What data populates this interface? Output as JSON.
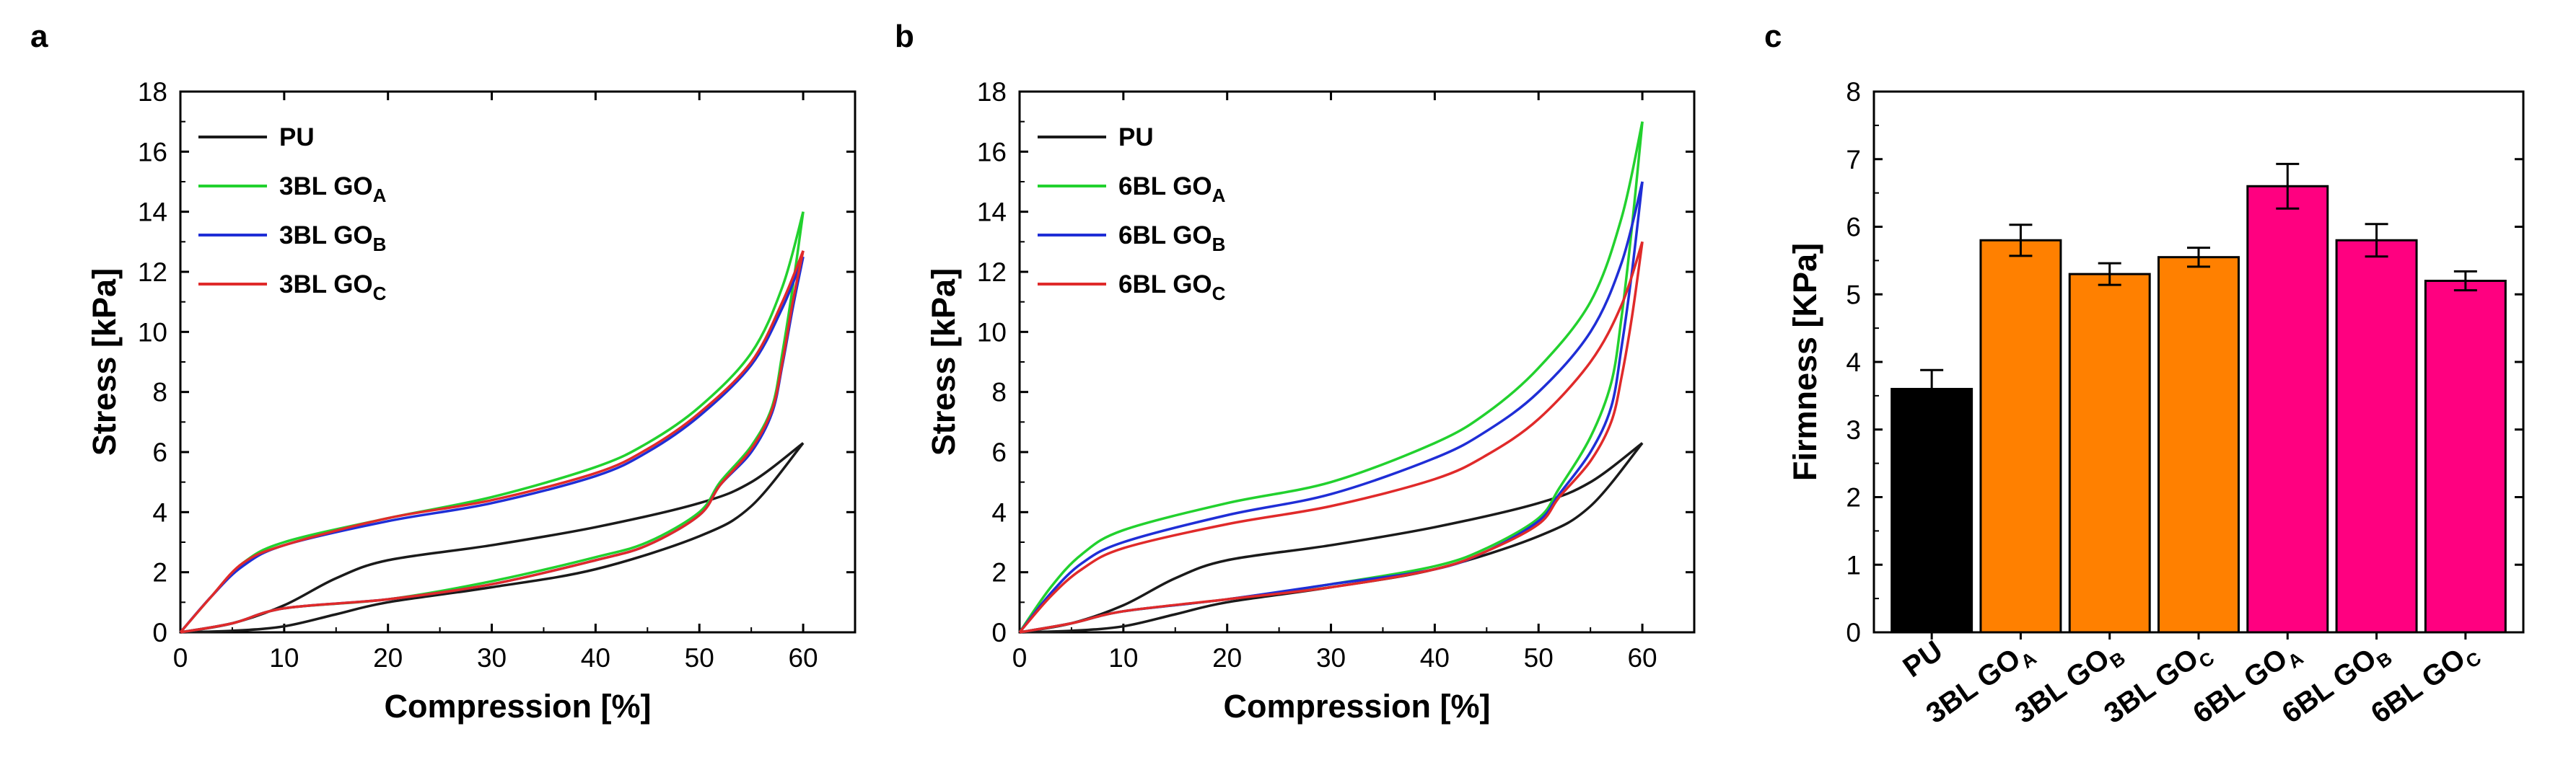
{
  "figure": {
    "panel_labels": [
      "a",
      "b",
      "c"
    ]
  },
  "chart_data": [
    {
      "panel": "a",
      "type": "line",
      "title": "",
      "xlabel": "Compression [%]",
      "ylabel": "Stress [kPa]",
      "xlim": [
        0,
        65
      ],
      "ylim": [
        0,
        18
      ],
      "xticks": [
        0,
        10,
        20,
        30,
        40,
        50,
        60
      ],
      "yticks": [
        0,
        2,
        4,
        6,
        8,
        10,
        12,
        14,
        16,
        18
      ],
      "legend_position": "top-left",
      "series": [
        {
          "name": "PU",
          "name_base": "PU",
          "name_sub": "",
          "color": "#1a1a1a",
          "loading": [
            [
              0,
              0
            ],
            [
              5,
              0.3
            ],
            [
              10,
              0.9
            ],
            [
              15,
              1.8
            ],
            [
              20,
              2.4
            ],
            [
              30,
              2.9
            ],
            [
              40,
              3.5
            ],
            [
              50,
              4.3
            ],
            [
              55,
              5.0
            ],
            [
              60,
              6.3
            ]
          ],
          "unloading": [
            [
              60,
              6.3
            ],
            [
              55,
              4.2
            ],
            [
              50,
              3.2
            ],
            [
              40,
              2.1
            ],
            [
              30,
              1.5
            ],
            [
              20,
              1.0
            ],
            [
              15,
              0.6
            ],
            [
              10,
              0.2
            ],
            [
              5,
              0.05
            ],
            [
              0,
              0
            ]
          ]
        },
        {
          "name": "3BL GOA",
          "name_base": "3BL GO",
          "name_sub": "A",
          "color": "#22d12e",
          "loading": [
            [
              0,
              0
            ],
            [
              3,
              1.2
            ],
            [
              6,
              2.3
            ],
            [
              10,
              3.0
            ],
            [
              20,
              3.8
            ],
            [
              30,
              4.5
            ],
            [
              40,
              5.5
            ],
            [
              45,
              6.3
            ],
            [
              50,
              7.5
            ],
            [
              55,
              9.3
            ],
            [
              58,
              11.5
            ],
            [
              60,
              14.0
            ]
          ],
          "unloading": [
            [
              60,
              14.0
            ],
            [
              59,
              11.5
            ],
            [
              58,
              9.3
            ],
            [
              57,
              7.5
            ],
            [
              55,
              6.2
            ],
            [
              52,
              5.0
            ],
            [
              50,
              4.0
            ],
            [
              45,
              3.0
            ],
            [
              40,
              2.5
            ],
            [
              30,
              1.7
            ],
            [
              20,
              1.1
            ],
            [
              10,
              0.8
            ],
            [
              5,
              0.3
            ],
            [
              0,
              0
            ]
          ]
        },
        {
          "name": "3BL GOB",
          "name_base": "3BL GO",
          "name_sub": "B",
          "color": "#1f2ed6",
          "loading": [
            [
              0,
              0
            ],
            [
              3,
              1.2
            ],
            [
              6,
              2.2
            ],
            [
              10,
              2.9
            ],
            [
              20,
              3.7
            ],
            [
              30,
              4.3
            ],
            [
              40,
              5.2
            ],
            [
              45,
              6.0
            ],
            [
              50,
              7.2
            ],
            [
              55,
              8.9
            ],
            [
              58,
              10.8
            ],
            [
              60,
              12.5
            ]
          ],
          "unloading": [
            [
              60,
              12.5
            ],
            [
              59,
              10.8
            ],
            [
              58,
              8.9
            ],
            [
              57,
              7.3
            ],
            [
              55,
              6.0
            ],
            [
              52,
              4.9
            ],
            [
              50,
              3.9
            ],
            [
              45,
              2.9
            ],
            [
              40,
              2.4
            ],
            [
              30,
              1.6
            ],
            [
              20,
              1.1
            ],
            [
              10,
              0.8
            ],
            [
              5,
              0.3
            ],
            [
              0,
              0
            ]
          ]
        },
        {
          "name": "3BL GOC",
          "name_base": "3BL GO",
          "name_sub": "C",
          "color": "#e02a2a",
          "loading": [
            [
              0,
              0
            ],
            [
              3,
              1.2
            ],
            [
              6,
              2.3
            ],
            [
              10,
              2.9
            ],
            [
              20,
              3.8
            ],
            [
              30,
              4.4
            ],
            [
              40,
              5.3
            ],
            [
              45,
              6.1
            ],
            [
              50,
              7.3
            ],
            [
              55,
              9.0
            ],
            [
              58,
              11.0
            ],
            [
              60,
              12.7
            ]
          ],
          "unloading": [
            [
              60,
              12.7
            ],
            [
              59,
              11.0
            ],
            [
              58,
              9.0
            ],
            [
              57,
              7.4
            ],
            [
              55,
              6.1
            ],
            [
              52,
              4.9
            ],
            [
              50,
              3.9
            ],
            [
              45,
              2.9
            ],
            [
              40,
              2.4
            ],
            [
              30,
              1.6
            ],
            [
              20,
              1.1
            ],
            [
              10,
              0.8
            ],
            [
              5,
              0.3
            ],
            [
              0,
              0
            ]
          ]
        }
      ]
    },
    {
      "panel": "b",
      "type": "line",
      "title": "",
      "xlabel": "Compression [%]",
      "ylabel": "Stress [kPa]",
      "xlim": [
        0,
        65
      ],
      "ylim": [
        0,
        18
      ],
      "xticks": [
        0,
        10,
        20,
        30,
        40,
        50,
        60
      ],
      "yticks": [
        0,
        2,
        4,
        6,
        8,
        10,
        12,
        14,
        16,
        18
      ],
      "legend_position": "top-left",
      "series": [
        {
          "name": "PU",
          "name_base": "PU",
          "name_sub": "",
          "color": "#1a1a1a",
          "loading": [
            [
              0,
              0
            ],
            [
              5,
              0.3
            ],
            [
              10,
              0.9
            ],
            [
              15,
              1.8
            ],
            [
              20,
              2.4
            ],
            [
              30,
              2.9
            ],
            [
              40,
              3.5
            ],
            [
              50,
              4.3
            ],
            [
              55,
              5.0
            ],
            [
              60,
              6.3
            ]
          ],
          "unloading": [
            [
              60,
              6.3
            ],
            [
              55,
              4.2
            ],
            [
              50,
              3.2
            ],
            [
              40,
              2.1
            ],
            [
              30,
              1.5
            ],
            [
              20,
              1.0
            ],
            [
              15,
              0.6
            ],
            [
              10,
              0.2
            ],
            [
              5,
              0.05
            ],
            [
              0,
              0
            ]
          ]
        },
        {
          "name": "6BL GOA",
          "name_base": "6BL GO",
          "name_sub": "A",
          "color": "#22d12e",
          "loading": [
            [
              0,
              0
            ],
            [
              3,
              1.5
            ],
            [
              6,
              2.6
            ],
            [
              10,
              3.4
            ],
            [
              20,
              4.3
            ],
            [
              30,
              5.0
            ],
            [
              40,
              6.3
            ],
            [
              45,
              7.3
            ],
            [
              50,
              8.8
            ],
            [
              55,
              11.0
            ],
            [
              58,
              13.8
            ],
            [
              60,
              17.0
            ]
          ],
          "unloading": [
            [
              60,
              17.0
            ],
            [
              59,
              13.5
            ],
            [
              58,
              10.5
            ],
            [
              57,
              8.3
            ],
            [
              55,
              6.5
            ],
            [
              52,
              4.8
            ],
            [
              50,
              3.8
            ],
            [
              45,
              2.8
            ],
            [
              40,
              2.2
            ],
            [
              30,
              1.6
            ],
            [
              20,
              1.1
            ],
            [
              10,
              0.7
            ],
            [
              5,
              0.3
            ],
            [
              0,
              0
            ]
          ]
        },
        {
          "name": "6BL GOB",
          "name_base": "6BL GO",
          "name_sub": "B",
          "color": "#1f2ed6",
          "loading": [
            [
              0,
              0
            ],
            [
              3,
              1.3
            ],
            [
              6,
              2.3
            ],
            [
              10,
              3.0
            ],
            [
              20,
              3.9
            ],
            [
              30,
              4.6
            ],
            [
              40,
              5.8
            ],
            [
              45,
              6.7
            ],
            [
              50,
              8.0
            ],
            [
              55,
              10.0
            ],
            [
              58,
              12.3
            ],
            [
              60,
              15.0
            ]
          ],
          "unloading": [
            [
              60,
              15.0
            ],
            [
              59,
              12.0
            ],
            [
              58,
              9.5
            ],
            [
              57,
              7.5
            ],
            [
              55,
              6.0
            ],
            [
              52,
              4.6
            ],
            [
              50,
              3.7
            ],
            [
              45,
              2.7
            ],
            [
              40,
              2.1
            ],
            [
              30,
              1.6
            ],
            [
              20,
              1.1
            ],
            [
              10,
              0.7
            ],
            [
              5,
              0.3
            ],
            [
              0,
              0
            ]
          ]
        },
        {
          "name": "6BL GOC",
          "name_base": "6BL GO",
          "name_sub": "C",
          "color": "#e02a2a",
          "loading": [
            [
              0,
              0
            ],
            [
              3,
              1.2
            ],
            [
              6,
              2.1
            ],
            [
              10,
              2.8
            ],
            [
              20,
              3.6
            ],
            [
              30,
              4.2
            ],
            [
              40,
              5.1
            ],
            [
              45,
              5.9
            ],
            [
              50,
              7.1
            ],
            [
              55,
              9.0
            ],
            [
              58,
              10.9
            ],
            [
              60,
              13.0
            ]
          ],
          "unloading": [
            [
              60,
              13.0
            ],
            [
              59,
              10.5
            ],
            [
              58,
              8.5
            ],
            [
              57,
              7.0
            ],
            [
              55,
              5.7
            ],
            [
              52,
              4.5
            ],
            [
              50,
              3.6
            ],
            [
              45,
              2.7
            ],
            [
              40,
              2.1
            ],
            [
              30,
              1.5
            ],
            [
              20,
              1.1
            ],
            [
              10,
              0.7
            ],
            [
              5,
              0.3
            ],
            [
              0,
              0
            ]
          ]
        }
      ]
    },
    {
      "panel": "c",
      "type": "bar",
      "title": "",
      "xlabel": "",
      "ylabel": "Firmness [KPa]",
      "ylim": [
        0,
        8
      ],
      "yticks": [
        0,
        1,
        2,
        3,
        4,
        5,
        6,
        7,
        8
      ],
      "categories": [
        "PU",
        "3BL GOA",
        "3BL GOB",
        "3BL GOC",
        "6BL GOA",
        "6BL GOB",
        "6BL GOC"
      ],
      "category_base": [
        "PU",
        "3BL GO",
        "3BL GO",
        "3BL GO",
        "6BL GO",
        "6BL GO",
        "6BL GO"
      ],
      "category_sub": [
        "",
        "A",
        "B",
        "C",
        "A",
        "B",
        "C"
      ],
      "values": [
        3.6,
        5.8,
        5.3,
        5.55,
        6.6,
        5.8,
        5.2
      ],
      "errors": [
        0.28,
        0.23,
        0.16,
        0.14,
        0.33,
        0.24,
        0.14
      ],
      "colors": [
        "#000000",
        "#ff8000",
        "#ff8000",
        "#ff8000",
        "#ff0080",
        "#ff0080",
        "#ff0080"
      ]
    }
  ]
}
